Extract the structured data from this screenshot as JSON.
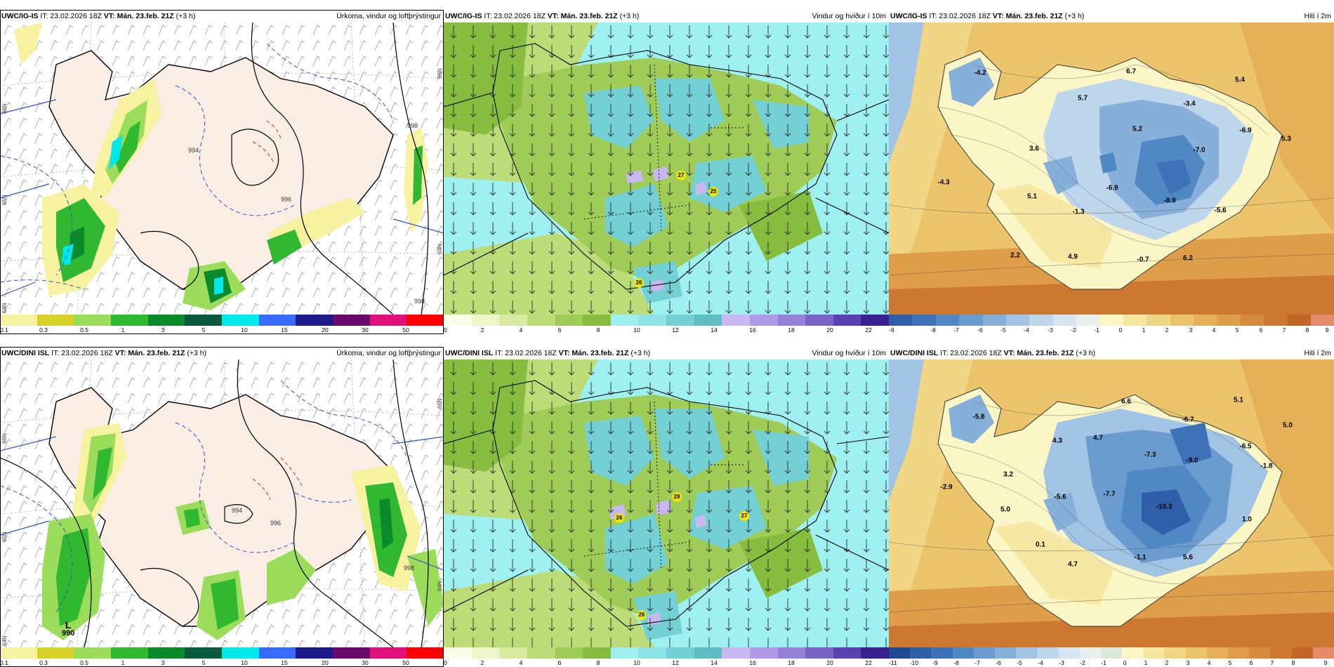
{
  "rows": [
    {
      "model": "UWC/IG-IS",
      "issue_text": "IT: 23.02.2026 18Z",
      "valid_label": "VT:",
      "valid_text": "Mán. 23.feb. 21Z",
      "lead": "(+3 h)",
      "panels": [
        {
          "type": "precip",
          "title": "Úrkoma, vindur og loftþrýstingur",
          "lat_labels": [
            "66N",
            "65N",
            "64N"
          ],
          "lat_labels_right": [
            "66N",
            "64N",
            "63N"
          ]
        },
        {
          "type": "wind",
          "title": "Vindur og hviður í 10m",
          "gusts": [
            "27",
            "25",
            "26"
          ]
        },
        {
          "type": "temp",
          "title": "Hiti í 2m",
          "labels": [
            "-4.2",
            "6.7",
            "5.4",
            "5.7",
            "-3.4",
            "-6.9",
            "5.2",
            "5.3",
            "3.6",
            "-7.0",
            "-4.3",
            "5.1",
            "-6.9",
            "-8.9",
            "-1.3",
            "-5.6",
            "2.2",
            "4.9",
            "-0.7",
            "6.2"
          ]
        }
      ],
      "precip_ticks": [
        "0.1",
        "0.3",
        "0.5",
        "1",
        "3",
        "5",
        "10",
        "15",
        "20",
        "30",
        "50"
      ],
      "wind_ticks": [
        "0",
        "2",
        "4",
        "6",
        "8",
        "10",
        "12",
        "14",
        "16",
        "18",
        "20",
        "22"
      ],
      "temp_ticks": [
        "-9",
        "-8",
        "-7",
        "-6",
        "-5",
        "-4",
        "-3",
        "-2",
        "-1",
        "0",
        "1",
        "2",
        "3",
        "4",
        "5",
        "6",
        "7",
        "8",
        "9"
      ],
      "isobars": [
        "994",
        "996",
        "998",
        "998"
      ]
    },
    {
      "model": "UWC/DINI ISL",
      "issue_text": "IT: 23.02.2026 18Z",
      "valid_label": "VT:",
      "valid_text": "Mán. 23.feb. 21Z",
      "lead": "(+3 h)",
      "panels": [
        {
          "type": "precip",
          "title": "Úrkoma, vindur og loftþrýstingur",
          "lat_labels": [
            "66N",
            "65N",
            "64N"
          ],
          "lat_labels_right": [
            "66N",
            "64N",
            "63N"
          ],
          "low": {
            "letter": "L",
            "value": "990"
          }
        },
        {
          "type": "wind",
          "title": "Vindur og hviður í 10m",
          "gusts": [
            "26",
            "28",
            "27",
            "26"
          ]
        },
        {
          "type": "temp",
          "title": "Hiti í 2m",
          "labels": [
            "6.6",
            "5.1",
            "-5.8",
            "-6.7",
            "5.0",
            "4.3",
            "4.7",
            "-6.5",
            "-7.3",
            "-9.0",
            "3.2",
            "-1.8",
            "-2.9",
            "-5.6",
            "-7.7",
            "-10.3",
            "5.0",
            "1.0",
            "0.1",
            "-1.1",
            "5.6",
            "4.7"
          ]
        }
      ],
      "precip_ticks": [
        "0.1",
        "0.3",
        "0.5",
        "1",
        "3",
        "5",
        "10",
        "15",
        "20",
        "30",
        "50"
      ],
      "wind_ticks": [
        "0",
        "2",
        "4",
        "6",
        "8",
        "10",
        "12",
        "14",
        "16",
        "18",
        "20",
        "22"
      ],
      "temp_ticks": [
        "-11",
        "-10",
        "-9",
        "-8",
        "-7",
        "-6",
        "-5",
        "-4",
        "-3",
        "-2",
        "-1",
        "0",
        "1",
        "2",
        "3",
        "4",
        "5",
        "6",
        "7",
        "8",
        "9"
      ],
      "isobars": [
        "994",
        "996",
        "998",
        "990"
      ]
    }
  ],
  "colors": {
    "precip_scale": [
      "#f7f2a0",
      "#d7d12a",
      "#9bdc5a",
      "#30b830",
      "#0a8a2a",
      "#0a5a40",
      "#00e8e8",
      "#3a6bff",
      "#1a1a8a",
      "#6a0a6a",
      "#e0107a",
      "#ff0000"
    ],
    "wind_scale": [
      "#fbfde8",
      "#eef5c8",
      "#d7eaa0",
      "#bcdc78",
      "#9fcc56",
      "#86bd3e",
      "#9ff0f0",
      "#8ee3e6",
      "#72d0d4",
      "#5ebdc3",
      "#c8b7f0",
      "#b09ae6",
      "#9780d8",
      "#7a62c7",
      "#5a40b0",
      "#3a2090"
    ],
    "temp_scale": [
      "#2f5fa8",
      "#3e72b8",
      "#5088c4",
      "#6a9ccf",
      "#86b0da",
      "#a2c4e4",
      "#bdd6ec",
      "#d5e5f1",
      "#e8f0ee",
      "#fbf6c6",
      "#f6e7a2",
      "#f1d685",
      "#ecc46c",
      "#e5b058",
      "#de9d48",
      "#d68a3c",
      "#cd7830",
      "#c46628",
      "#e58a6a"
    ]
  }
}
